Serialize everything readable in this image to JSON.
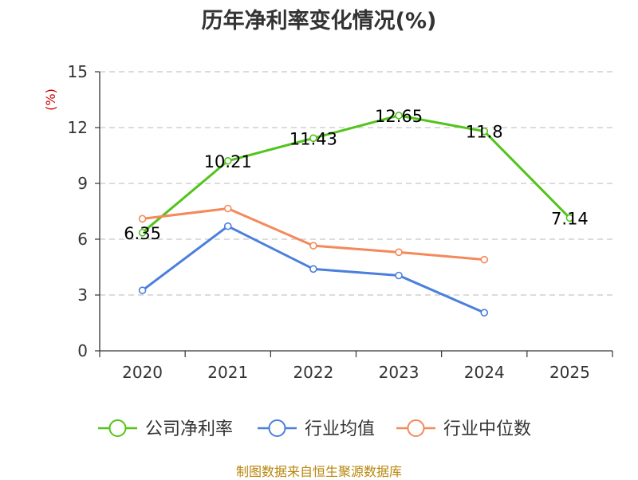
{
  "title": "历年净利率变化情况(%)",
  "source": "制图数据来自恒生聚源数据库",
  "chart_data": {
    "type": "line",
    "title": "历年净利率变化情况(%)",
    "ylabel": "(%)",
    "xlabel": "",
    "ylim": [
      0,
      15
    ],
    "yticks": [
      0,
      3,
      6,
      9,
      12,
      15
    ],
    "grid": true,
    "legend_position": "bottom",
    "categories": [
      "2020",
      "2021",
      "2022",
      "2023",
      "2024",
      "2025"
    ],
    "series": [
      {
        "name": "公司净利率",
        "color": "#52c41a",
        "values": [
          6.35,
          10.21,
          11.43,
          12.65,
          11.8,
          7.14
        ],
        "labels": [
          "6.35",
          "10.21",
          "11.43",
          "12.65",
          "11.8",
          "7.14"
        ]
      },
      {
        "name": "行业均值",
        "color": "#4a7fdc",
        "values": [
          3.25,
          6.7,
          4.4,
          4.05,
          2.05,
          null
        ]
      },
      {
        "name": "行业中位数",
        "color": "#f4895a",
        "values": [
          7.1,
          7.65,
          5.65,
          5.3,
          4.9,
          null
        ]
      }
    ]
  }
}
